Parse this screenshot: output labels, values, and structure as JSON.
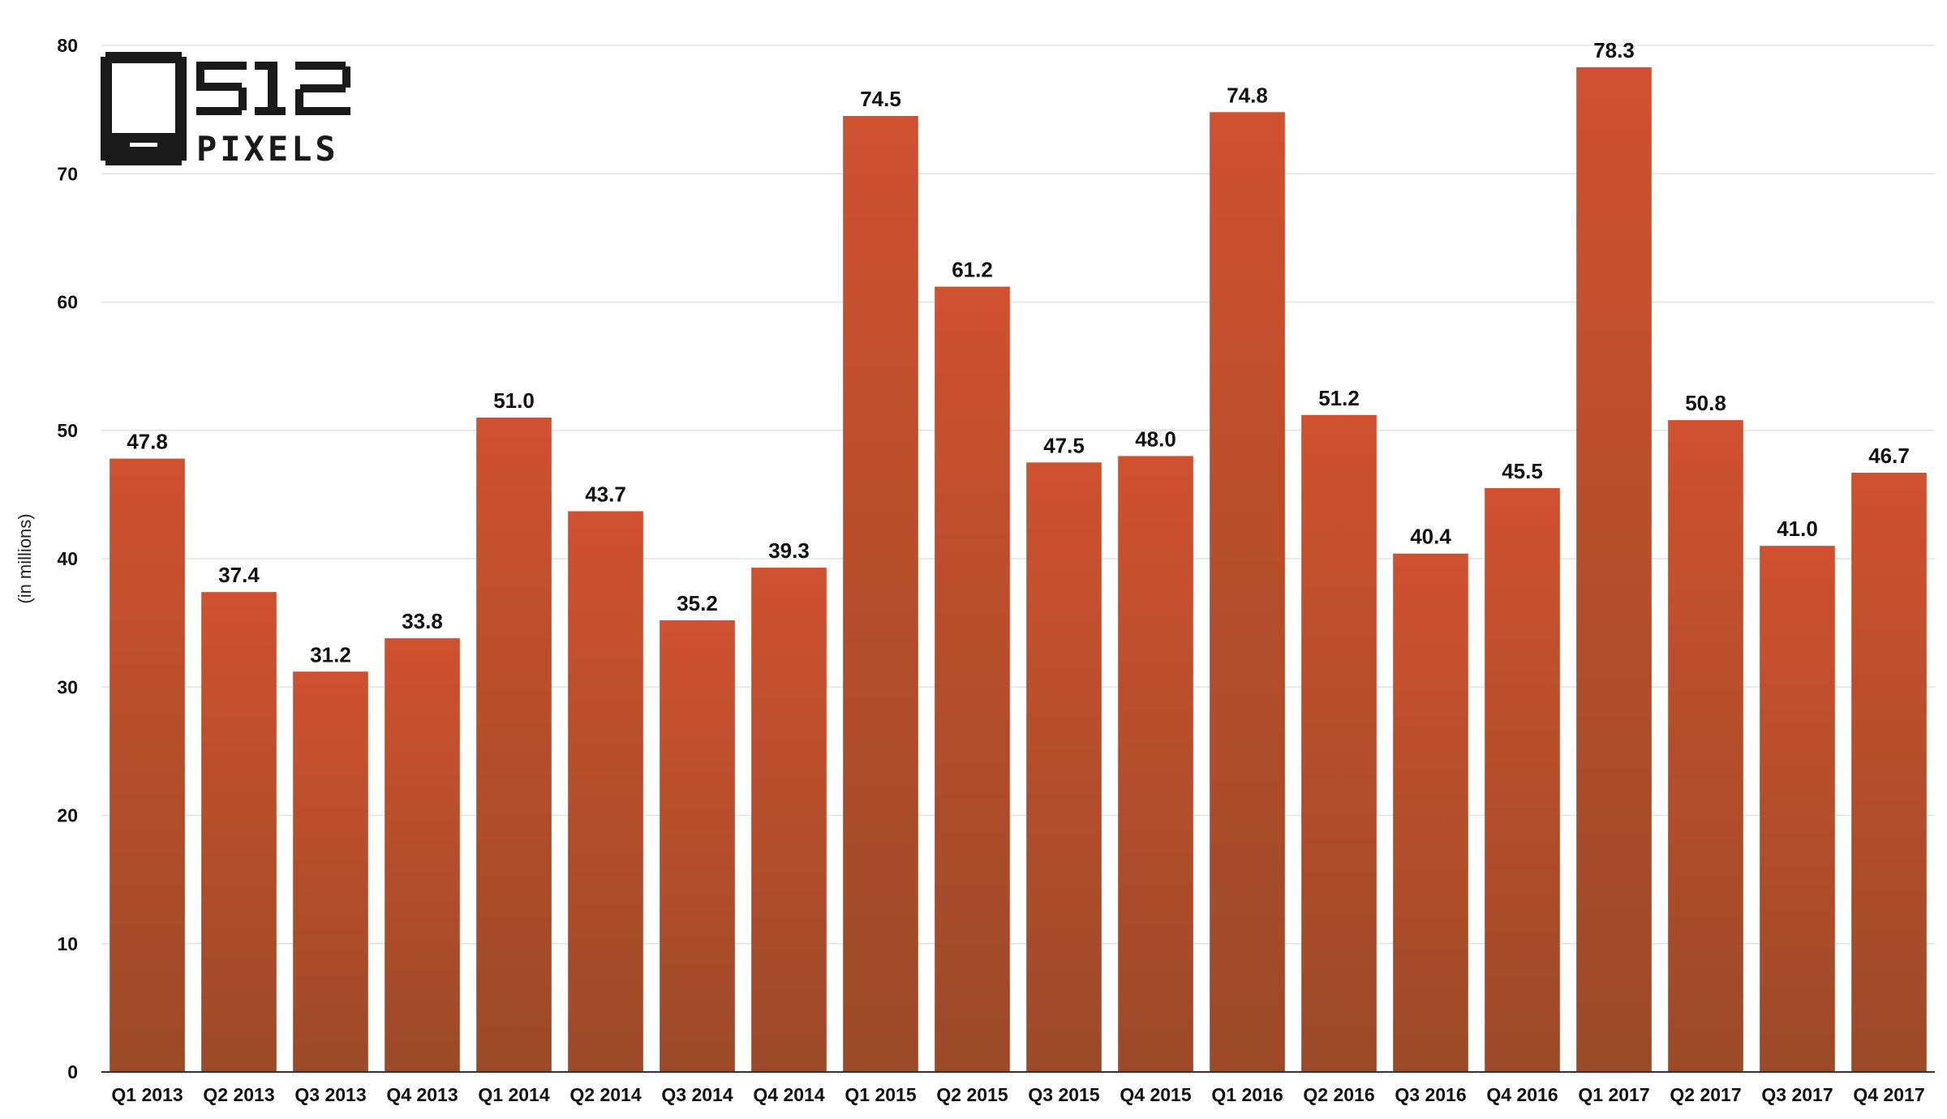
{
  "colors": {
    "bar_top": "#cf5130",
    "bar_bottom": "#9b4a28",
    "logo": "#1a1a1a"
  },
  "logo": {
    "line1": "512",
    "line2": "PIXELS"
  },
  "chart_data": {
    "type": "bar",
    "ylabel": "(in millions)",
    "xlabel": "",
    "title": "",
    "ylim": [
      0,
      80
    ],
    "yticks": [
      0,
      10,
      20,
      30,
      40,
      50,
      60,
      70,
      80
    ],
    "grid": true,
    "data_labels": true,
    "categories": [
      "Q1 2013",
      "Q2 2013",
      "Q3 2013",
      "Q4 2013",
      "Q1 2014",
      "Q2 2014",
      "Q3 2014",
      "Q4 2014",
      "Q1 2015",
      "Q2 2015",
      "Q3 2015",
      "Q4 2015",
      "Q1 2016",
      "Q2 2016",
      "Q3 2016",
      "Q4 2016",
      "Q1 2017",
      "Q2 2017",
      "Q3 2017",
      "Q4 2017"
    ],
    "values": [
      47.8,
      37.4,
      31.2,
      33.8,
      51.0,
      43.7,
      35.2,
      39.3,
      74.5,
      61.2,
      47.5,
      48.0,
      74.8,
      51.2,
      40.4,
      45.5,
      78.3,
      50.8,
      41.0,
      46.7
    ],
    "value_labels": [
      "47.8",
      "37.4",
      "31.2",
      "33.8",
      "51.0",
      "43.7",
      "35.2",
      "39.3",
      "74.5",
      "61.2",
      "47.5",
      "48.0",
      "74.8",
      "51.2",
      "40.4",
      "45.5",
      "78.3",
      "50.8",
      "41.0",
      "46.7"
    ]
  }
}
